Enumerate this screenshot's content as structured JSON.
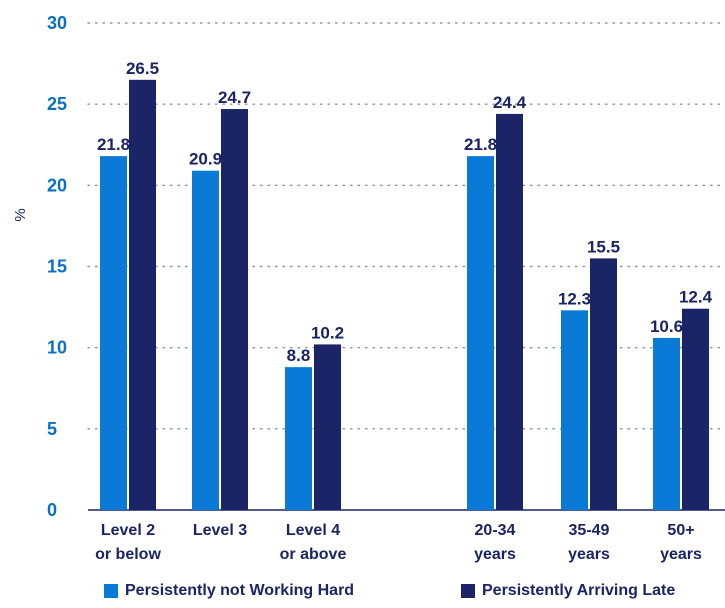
{
  "chart_data": {
    "type": "bar",
    "title": "",
    "xlabel": "",
    "ylabel": "%",
    "ylim": [
      0,
      30
    ],
    "yticks": [
      0,
      5,
      10,
      15,
      20,
      25,
      30
    ],
    "grid": true,
    "legend_position": "bottom",
    "groups": [
      {
        "categories": [
          [
            "Level 2",
            "or below"
          ],
          [
            "Level 3"
          ],
          [
            "Level 4",
            "or above"
          ]
        ]
      },
      {
        "categories": [
          [
            "20-34",
            "years"
          ],
          [
            "35-49",
            "years"
          ],
          [
            "50+",
            "years"
          ]
        ]
      }
    ],
    "series": [
      {
        "name": "Persistently not Working Hard",
        "color": "#0a7ad6",
        "values": [
          21.8,
          20.9,
          8.8,
          21.8,
          12.3,
          10.6
        ],
        "labels": [
          "21.8",
          "20.9",
          "8.8",
          "21.8",
          "12.3",
          "10.6"
        ]
      },
      {
        "name": "Persistently Arriving Late",
        "color": "#1a2466",
        "values": [
          26.5,
          24.7,
          10.2,
          24.4,
          15.5,
          12.4
        ],
        "labels": [
          "26.5",
          "24.7",
          "10.2",
          "24.4",
          "15.5",
          "12.4"
        ]
      }
    ]
  }
}
